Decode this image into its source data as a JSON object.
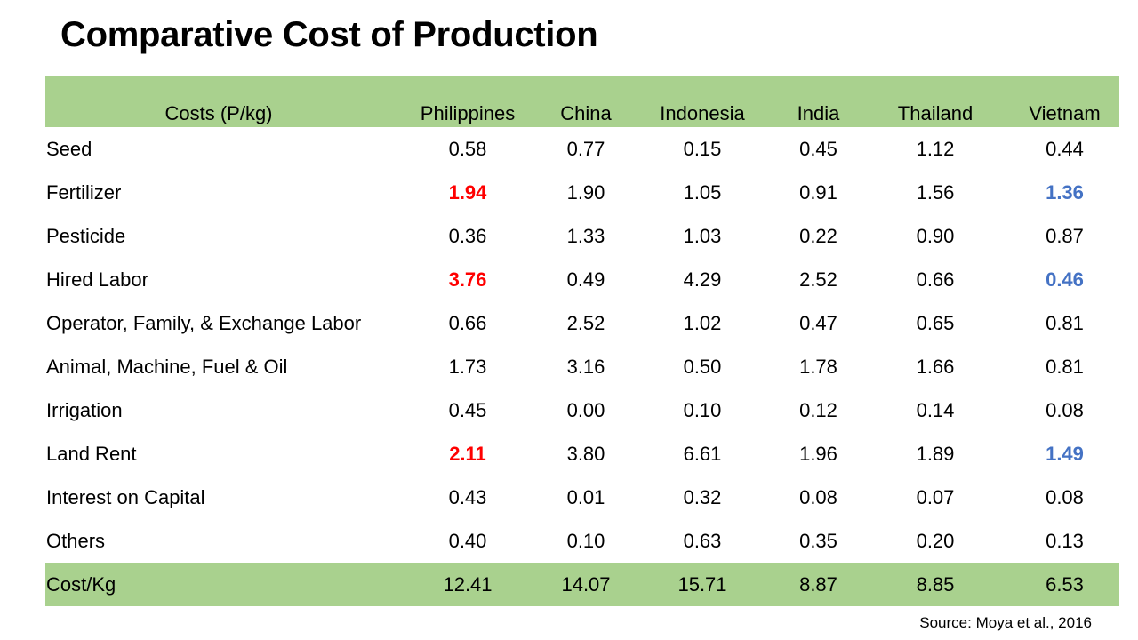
{
  "slide": {
    "title": "Comparative Cost of Production",
    "source": "Source: Moya et al., 2016"
  },
  "table": {
    "columns": [
      "Costs (P/kg)",
      "Philippines",
      "China",
      "Indonesia",
      "India",
      "Thailand",
      "Vietnam"
    ],
    "rows": [
      {
        "label": "Seed",
        "values": [
          "0.58",
          "0.77",
          "0.15",
          "0.45",
          "1.12",
          "0.44"
        ]
      },
      {
        "label": "Fertilizer",
        "values": [
          "1.94",
          "1.90",
          "1.05",
          "0.91",
          "1.56",
          "1.36"
        ]
      },
      {
        "label": "Pesticide",
        "values": [
          "0.36",
          "1.33",
          "1.03",
          "0.22",
          "0.90",
          "0.87"
        ]
      },
      {
        "label": "Hired Labor",
        "values": [
          "3.76",
          "0.49",
          "4.29",
          "2.52",
          "0.66",
          "0.46"
        ]
      },
      {
        "label": "Operator, Family, & Exchange Labor",
        "values": [
          "0.66",
          "2.52",
          "1.02",
          "0.47",
          "0.65",
          "0.81"
        ]
      },
      {
        "label": "Animal, Machine, Fuel & Oil",
        "values": [
          "1.73",
          "3.16",
          "0.50",
          "1.78",
          "1.66",
          "0.81"
        ]
      },
      {
        "label": "Irrigation",
        "values": [
          "0.45",
          "0.00",
          "0.10",
          "0.12",
          "0.14",
          "0.08"
        ]
      },
      {
        "label": "Land Rent",
        "values": [
          "2.11",
          "3.80",
          "6.61",
          "1.96",
          "1.89",
          "1.49"
        ]
      },
      {
        "label": "Interest on Capital",
        "values": [
          "0.43",
          "0.01",
          "0.32",
          "0.08",
          "0.07",
          "0.08"
        ]
      },
      {
        "label": "Others",
        "values": [
          "0.40",
          "0.10",
          "0.63",
          "0.35",
          "0.20",
          "0.13"
        ]
      }
    ],
    "total": {
      "label": "Cost/Kg",
      "values": [
        "12.41",
        "14.07",
        "15.71",
        "8.87",
        "8.85",
        "6.53"
      ]
    }
  },
  "colors": {
    "header_fill": "#a9d18e",
    "highlight_red": "#ff0000",
    "highlight_blue": "#4472c4"
  }
}
